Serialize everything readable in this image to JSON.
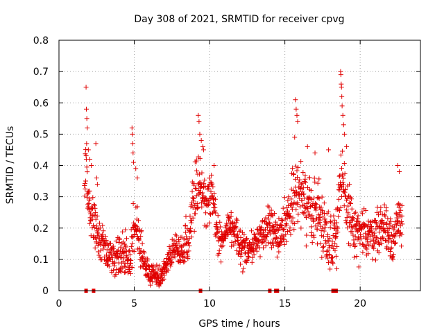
{
  "chart_data": {
    "type": "scatter",
    "title": "Day 308 of 2021, SRMTID for receiver cpvg",
    "xlabel": "GPS time / hours",
    "ylabel": "SRMTID / TECUs",
    "xlim": [
      0,
      24
    ],
    "ylim": [
      0,
      0.8
    ],
    "grid": true,
    "marker": "+",
    "color": "#e00000",
    "xticks": [
      0,
      5,
      10,
      15,
      20
    ],
    "xtick_labels": [
      "0",
      "5",
      "10",
      "15",
      "20"
    ],
    "yticks": [
      0,
      0.1,
      0.2,
      0.3,
      0.4,
      0.5,
      0.6,
      0.7,
      0.8
    ],
    "ytick_labels": [
      "0",
      "0.1",
      "0.2",
      "0.3",
      "0.4",
      "0.5",
      "0.6",
      "0.7",
      "0.8"
    ],
    "outage_markers_x": [
      1.8,
      2.3,
      9.4,
      14.0,
      14.4,
      14.5,
      18.2,
      18.4
    ],
    "trend": {
      "x": [
        1.7,
        1.8,
        1.9,
        2.0,
        2.2,
        2.4,
        2.6,
        2.8,
        3.0,
        3.2,
        3.5,
        3.8,
        4.0,
        4.2,
        4.4,
        4.6,
        4.8,
        5.0,
        5.2,
        5.5,
        5.8,
        6.0,
        6.3,
        6.5,
        6.7,
        7.0,
        7.3,
        7.6,
        8.0,
        8.3,
        8.6,
        8.8,
        9.0,
        9.2,
        9.4,
        9.6,
        9.8,
        10.0,
        10.2,
        10.4,
        10.6,
        10.8,
        11.0,
        11.3,
        11.6,
        12.0,
        12.4,
        12.8,
        13.2,
        13.6,
        14.0,
        14.3,
        14.6,
        14.9,
        15.2,
        15.5,
        15.8,
        16.1,
        16.4,
        16.7,
        17.0,
        17.3,
        17.6,
        17.9,
        18.2,
        18.5,
        18.7,
        18.9,
        19.2,
        19.5,
        19.8,
        20.1,
        20.4,
        20.7,
        21.0,
        21.3,
        21.6,
        21.9,
        22.2,
        22.5,
        22.8
      ],
      "y": [
        0.3,
        0.45,
        0.33,
        0.27,
        0.24,
        0.22,
        0.17,
        0.16,
        0.14,
        0.13,
        0.11,
        0.1,
        0.11,
        0.13,
        0.1,
        0.09,
        0.12,
        0.2,
        0.22,
        0.1,
        0.07,
        0.05,
        0.05,
        0.04,
        0.04,
        0.07,
        0.11,
        0.13,
        0.12,
        0.14,
        0.17,
        0.25,
        0.3,
        0.34,
        0.33,
        0.29,
        0.27,
        0.3,
        0.31,
        0.23,
        0.16,
        0.16,
        0.17,
        0.2,
        0.18,
        0.15,
        0.14,
        0.13,
        0.16,
        0.19,
        0.21,
        0.2,
        0.17,
        0.21,
        0.24,
        0.29,
        0.33,
        0.31,
        0.27,
        0.26,
        0.26,
        0.24,
        0.21,
        0.17,
        0.15,
        0.26,
        0.35,
        0.3,
        0.26,
        0.2,
        0.17,
        0.17,
        0.19,
        0.18,
        0.19,
        0.2,
        0.21,
        0.19,
        0.17,
        0.2,
        0.24
      ]
    },
    "scatter_width": {
      "x": [
        1.7,
        2.5,
        3.0,
        4.0,
        5.0,
        6.0,
        7.0,
        8.0,
        9.0,
        10.0,
        11.0,
        12.0,
        13.0,
        14.0,
        15.0,
        15.7,
        16.5,
        17.5,
        18.5,
        19.5,
        20.5,
        21.5,
        22.8
      ],
      "spread": [
        0.08,
        0.1,
        0.07,
        0.07,
        0.1,
        0.04,
        0.04,
        0.05,
        0.1,
        0.08,
        0.06,
        0.06,
        0.06,
        0.07,
        0.07,
        0.11,
        0.12,
        0.11,
        0.12,
        0.1,
        0.08,
        0.09,
        0.1
      ]
    },
    "spikes": [
      {
        "x": 1.8,
        "y": 0.65
      },
      {
        "x": 1.82,
        "y": 0.58
      },
      {
        "x": 1.85,
        "y": 0.55
      },
      {
        "x": 1.88,
        "y": 0.52
      },
      {
        "x": 1.95,
        "y": 0.45
      },
      {
        "x": 2.05,
        "y": 0.42
      },
      {
        "x": 2.15,
        "y": 0.4
      },
      {
        "x": 2.45,
        "y": 0.47
      },
      {
        "x": 2.5,
        "y": 0.36
      },
      {
        "x": 2.55,
        "y": 0.34
      },
      {
        "x": 4.85,
        "y": 0.52
      },
      {
        "x": 4.87,
        "y": 0.5
      },
      {
        "x": 4.9,
        "y": 0.47
      },
      {
        "x": 4.92,
        "y": 0.44
      },
      {
        "x": 4.95,
        "y": 0.41
      },
      {
        "x": 5.1,
        "y": 0.39
      },
      {
        "x": 5.2,
        "y": 0.36
      },
      {
        "x": 9.25,
        "y": 0.56
      },
      {
        "x": 9.3,
        "y": 0.54
      },
      {
        "x": 9.35,
        "y": 0.5
      },
      {
        "x": 9.45,
        "y": 0.48
      },
      {
        "x": 9.55,
        "y": 0.46
      },
      {
        "x": 9.6,
        "y": 0.45
      },
      {
        "x": 10.3,
        "y": 0.4
      },
      {
        "x": 15.7,
        "y": 0.61
      },
      {
        "x": 15.75,
        "y": 0.58
      },
      {
        "x": 15.8,
        "y": 0.56
      },
      {
        "x": 15.85,
        "y": 0.54
      },
      {
        "x": 15.65,
        "y": 0.49
      },
      {
        "x": 16.5,
        "y": 0.46
      },
      {
        "x": 17.0,
        "y": 0.44
      },
      {
        "x": 17.9,
        "y": 0.45
      },
      {
        "x": 18.7,
        "y": 0.7
      },
      {
        "x": 18.72,
        "y": 0.69
      },
      {
        "x": 18.74,
        "y": 0.66
      },
      {
        "x": 18.76,
        "y": 0.65
      },
      {
        "x": 18.78,
        "y": 0.62
      },
      {
        "x": 18.8,
        "y": 0.59
      },
      {
        "x": 18.85,
        "y": 0.56
      },
      {
        "x": 18.9,
        "y": 0.53
      },
      {
        "x": 18.95,
        "y": 0.5
      },
      {
        "x": 19.1,
        "y": 0.46
      },
      {
        "x": 22.5,
        "y": 0.4
      },
      {
        "x": 22.6,
        "y": 0.38
      },
      {
        "x": 18.4,
        "y": 0.11
      },
      {
        "x": 18.45,
        "y": 0.07
      },
      {
        "x": 12.2,
        "y": 0.06
      },
      {
        "x": 6.5,
        "y": 0.02
      }
    ]
  }
}
